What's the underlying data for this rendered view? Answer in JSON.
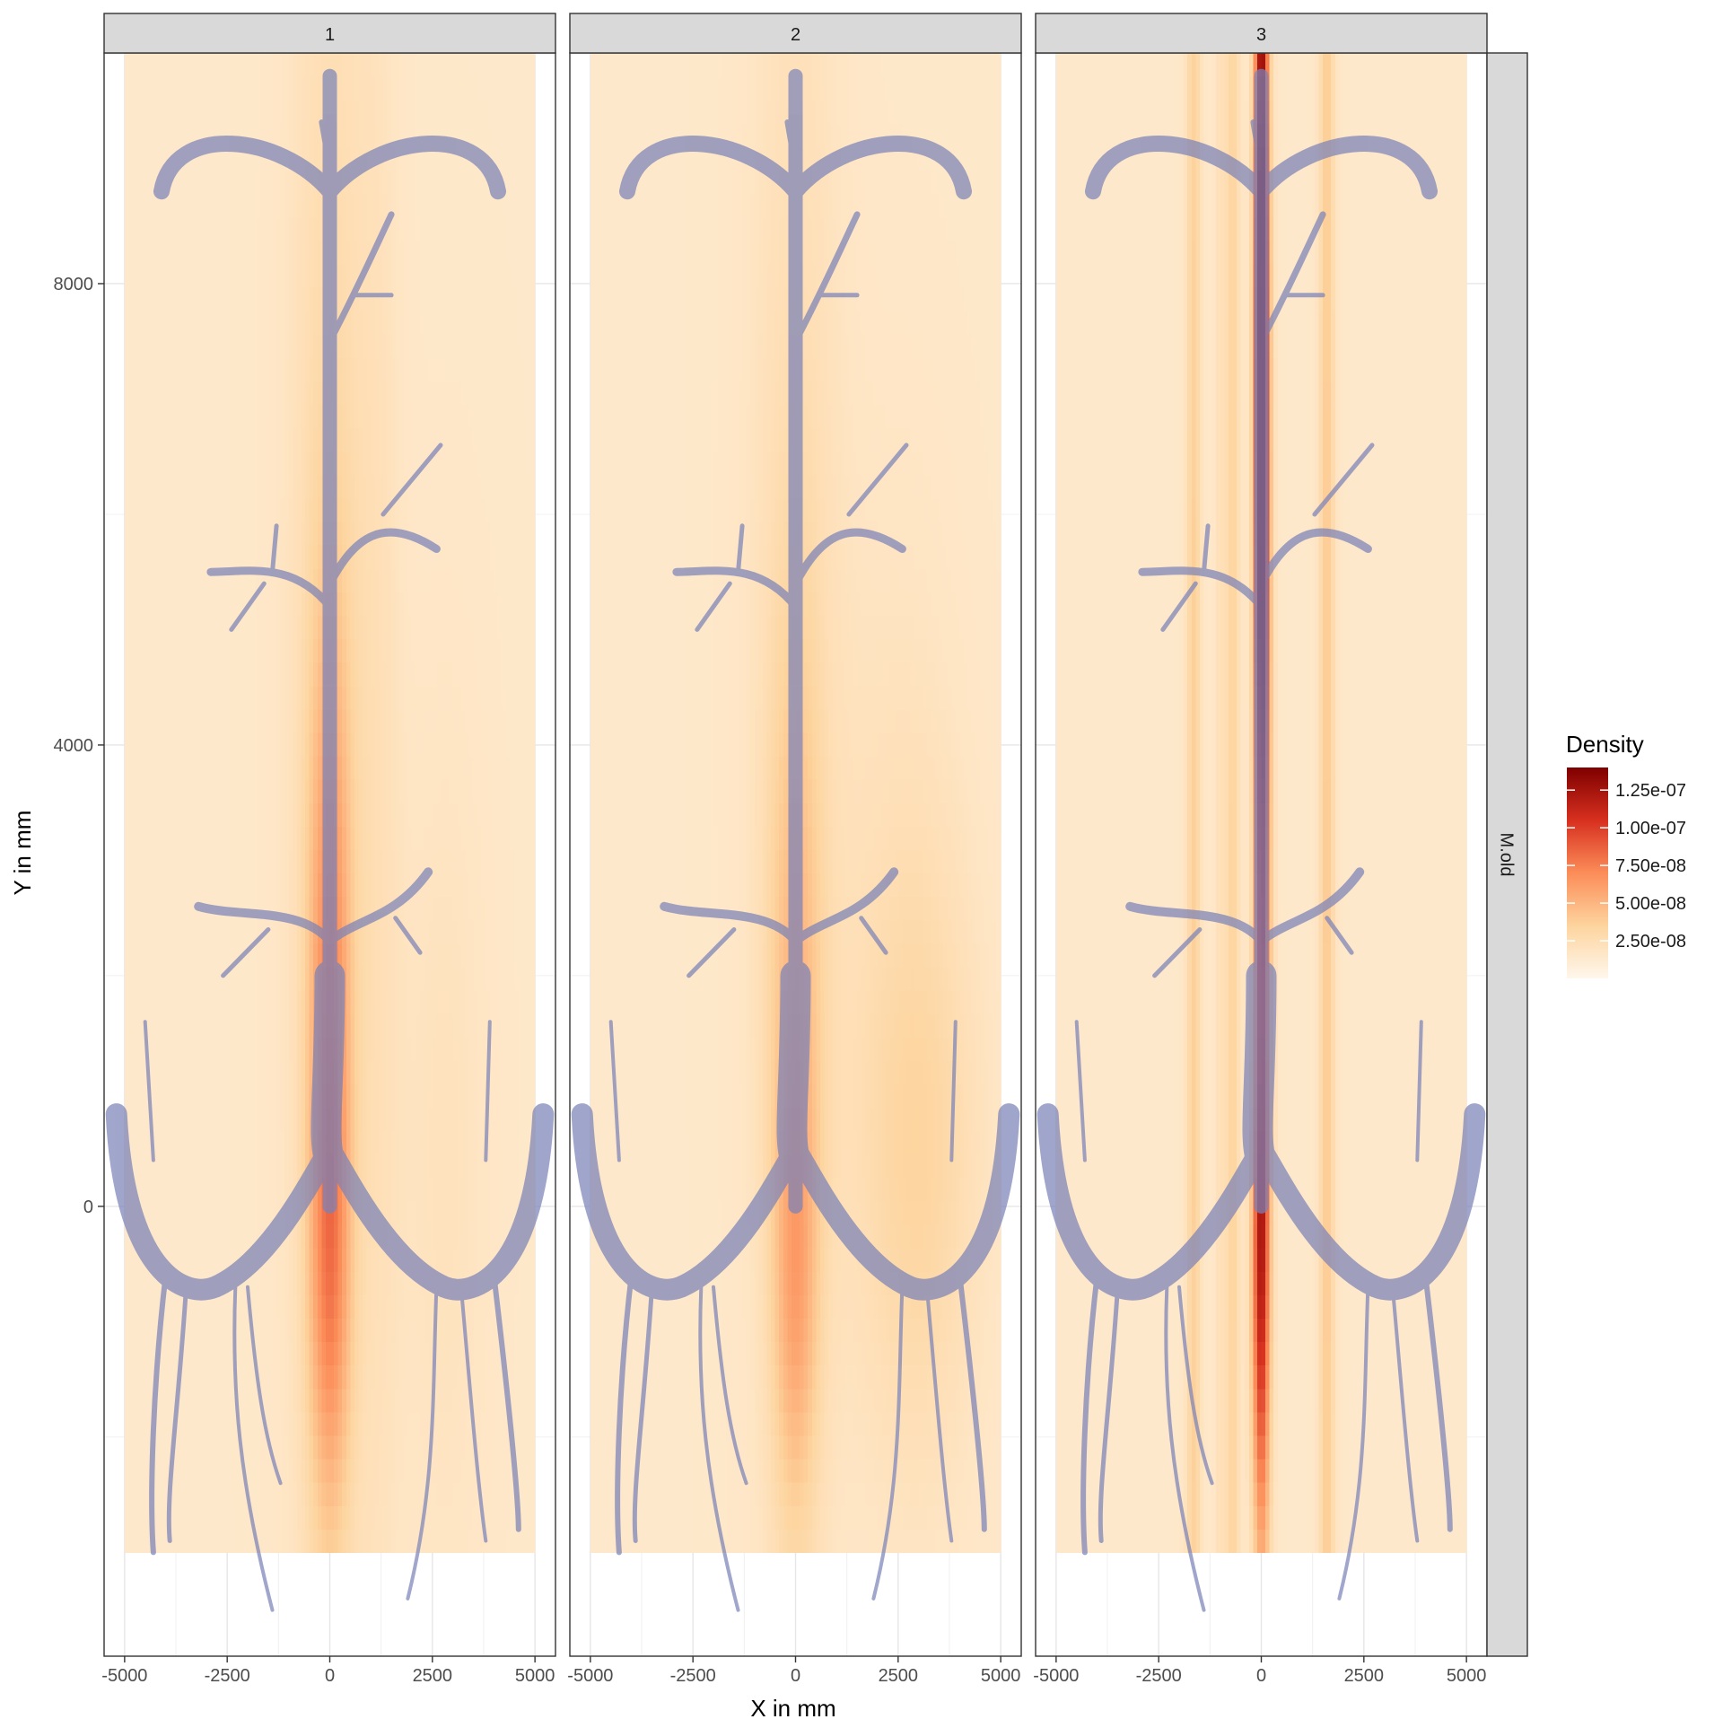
{
  "chart_data": {
    "type": "heatmap",
    "title": "",
    "xlabel": "X in mm",
    "ylabel": "Y in mm",
    "facet_labels": [
      "1",
      "2",
      "3"
    ],
    "facet_row_label": "M.old",
    "xlim": [
      -5500,
      5500
    ],
    "ylim": [
      -3900,
      10000
    ],
    "x_ticks": [
      -5000,
      -2500,
      0,
      2500,
      5000
    ],
    "x_tick_labels": [
      "-5000",
      "-2500",
      "0",
      "2500",
      "5000"
    ],
    "y_ticks": [
      0,
      4000,
      8000
    ],
    "y_tick_labels": [
      "0",
      "4000",
      "8000"
    ],
    "grid": true,
    "legend": {
      "title": "Density",
      "position": "right",
      "min": 0,
      "max": 1.4e-07,
      "breaks": [
        2.5e-08,
        5e-08,
        7.5e-08,
        1e-07,
        1.25e-07
      ],
      "labels": [
        "2.50e-08",
        "5.00e-08",
        "7.50e-08",
        "1.00e-07",
        "1.25e-07"
      ],
      "colors": [
        "#fff7ec",
        "#fdd49e",
        "#fc8d59",
        "#d7301f",
        "#7f0000"
      ]
    },
    "density_extent": {
      "x": [
        -5000,
        5000
      ],
      "y": [
        -3000,
        10000
      ]
    },
    "overlay_color": "#7b83b8",
    "panels": [
      {
        "facet": "1",
        "base_density": 1.5e-08,
        "bands": [
          {
            "x": 0,
            "sd_x": 350,
            "y": 1500,
            "sd_y": 2500,
            "peak": 4.8e-08
          },
          {
            "x": 0,
            "sd_x": 700,
            "y": 4000,
            "sd_y": 7000,
            "peak": 1.4e-08
          },
          {
            "x": 0,
            "sd_x": 350,
            "y": -800,
            "sd_y": 1200,
            "peak": 2.2e-08
          },
          {
            "x": 1200,
            "sd_x": 400,
            "y": 3500,
            "sd_y": 6000,
            "peak": 6e-09
          },
          {
            "x": 2800,
            "sd_x": 800,
            "y": 500,
            "sd_y": 3000,
            "peak": 6e-09
          }
        ]
      },
      {
        "facet": "2",
        "base_density": 1.5e-08,
        "bands": [
          {
            "x": 0,
            "sd_x": 450,
            "y": 1200,
            "sd_y": 2600,
            "peak": 2.8e-08
          },
          {
            "x": 0,
            "sd_x": 350,
            "y": -800,
            "sd_y": 1200,
            "peak": 2e-08
          },
          {
            "x": 0,
            "sd_x": 800,
            "y": 5000,
            "sd_y": 6000,
            "peak": 1e-08
          },
          {
            "x": 3000,
            "sd_x": 1000,
            "y": 400,
            "sd_y": 1800,
            "peak": 1.5e-08
          },
          {
            "x": 2500,
            "sd_x": 1200,
            "y": 2500,
            "sd_y": 3000,
            "peak": 6e-09
          }
        ]
      },
      {
        "facet": "3",
        "base_density": 1.5e-08,
        "bands": [
          {
            "x": 0,
            "sd_x": 120,
            "y": 7500,
            "sd_y": 4000,
            "peak": 1.25e-07
          },
          {
            "x": -30,
            "sd_x": 150,
            "y": -600,
            "sd_y": 1500,
            "peak": 6.5e-08
          },
          {
            "x": 50,
            "sd_x": 150,
            "y": 3000,
            "sd_y": 5000,
            "peak": 4e-08
          },
          {
            "x": -1650,
            "sd_x": 120,
            "y": 3000,
            "sd_y": 20000,
            "peak": 2.2e-08
          },
          {
            "x": -700,
            "sd_x": 120,
            "y": 3000,
            "sd_y": 20000,
            "peak": 2e-08
          },
          {
            "x": 1600,
            "sd_x": 130,
            "y": 3000,
            "sd_y": 20000,
            "peak": 2.5e-08
          },
          {
            "x": -1000,
            "sd_x": 90,
            "y": 3000,
            "sd_y": 20000,
            "peak": 8e-09
          }
        ]
      }
    ]
  }
}
